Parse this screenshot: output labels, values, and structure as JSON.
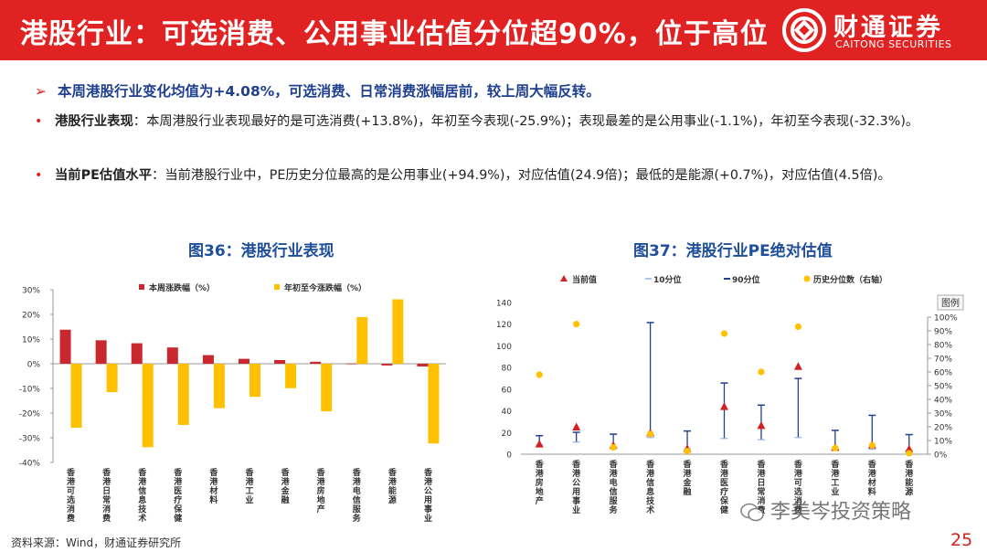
{
  "header": {
    "title": "港股行业：可选消费、公用事业估值分位超90%，位于高位",
    "logo_cn": "财通证券",
    "logo_en": "CAITONG SECURITIES"
  },
  "summary": "本周港股行业变化均值为+4.08%，可选消费、日常消费涨幅居前，较上周大幅反转。",
  "bullets": [
    {
      "label": "港股行业表现",
      "text": "：本周港股行业表现最好的是可选消费(+13.8%)，年初至今表现(-25.9%)；表现最差的是公用事业(-1.1%)，年初至今表现(-32.3%)。"
    },
    {
      "label": "当前PE估值水平",
      "text": "：当前港股行业中，PE历史分位最高的是公用事业(+94.9%)，对应估值(24.9倍)；最低的是能源(+0.7%)，对应估值(4.5倍)。"
    }
  ],
  "colors": {
    "brand_red": "#e02222",
    "bar_red": "#c8282e",
    "bar_yellow": "#ffc000",
    "title_blue": "#1f4e9a",
    "range_blue": "#1f3f8f",
    "marker_red": "#d42020"
  },
  "chart_data": [
    {
      "type": "bar",
      "title": "图36：港股行业表现",
      "categories": [
        "香港可选消费",
        "香港日常消费",
        "香港信息技术",
        "香港医疗保健",
        "香港材料",
        "香港工业",
        "香港金融",
        "香港房地产",
        "香港电信服务",
        "香港能源",
        "香港公用事业"
      ],
      "series": [
        {
          "name": "本周涨跌幅（%）",
          "values": [
            13.8,
            9.5,
            8.3,
            6.6,
            3.5,
            2.0,
            1.5,
            0.8,
            0.1,
            -0.7,
            -1.1
          ]
        },
        {
          "name": "年初至今涨跌幅（%）",
          "values": [
            -25.9,
            -11.5,
            -33.8,
            -24.8,
            -18.0,
            -13.4,
            -9.9,
            -19.3,
            18.9,
            26.1,
            -32.3
          ]
        }
      ],
      "yticks": [
        "30%",
        "20%",
        "10%",
        "0%",
        "-10%",
        "-20%",
        "-30%",
        "-40%"
      ],
      "ylim": [
        -40,
        30
      ]
    },
    {
      "type": "scatter",
      "title": "图37：港股行业PE绝对估值",
      "categories": [
        "香港房地产",
        "香港公用事业",
        "香港电信服务",
        "香港信息技术",
        "香港金融",
        "香港医疗保健",
        "香港日常消费",
        "香港可选消费",
        "香港工业",
        "香港材料",
        "香港能源"
      ],
      "series": [
        {
          "name": "当前值",
          "values": [
            9.2,
            24.9,
            7.9,
            19.5,
            5.0,
            43.8,
            26.2,
            80.8,
            6.0,
            8.3,
            4.5
          ]
        },
        {
          "name": "10分位",
          "values": [
            8.4,
            11.2,
            6.6,
            15.4,
            4.9,
            14.5,
            13.4,
            15.4,
            4.2,
            4.6,
            3.7
          ]
        },
        {
          "name": "90分位",
          "values": [
            17.1,
            20.2,
            18.5,
            121.5,
            21.4,
            65.7,
            45.3,
            69.9,
            22.0,
            35.9,
            18.1
          ]
        },
        {
          "name": "历史分位数（右轴）",
          "values": [
            58.0,
            94.9,
            5.0,
            14.7,
            2.3,
            88.0,
            60.0,
            93.0,
            4.5,
            6.5,
            0.7
          ]
        }
      ],
      "y_left_ticks": [
        "140",
        "120",
        "100",
        "80",
        "60",
        "40",
        "20",
        "0"
      ],
      "y_right_ticks": [
        "100%",
        "90%",
        "80%",
        "70%",
        "60%",
        "50%",
        "40%",
        "30%",
        "20%",
        "10%",
        "0%"
      ],
      "ylim_left": [
        0,
        140
      ],
      "ylim_right": [
        0,
        100
      ],
      "legend_badge": "图例"
    }
  ],
  "footer": {
    "source": "资料来源：Wind，财通证券研究所",
    "page_number": "25",
    "watermark": "李美岑投资策略"
  }
}
